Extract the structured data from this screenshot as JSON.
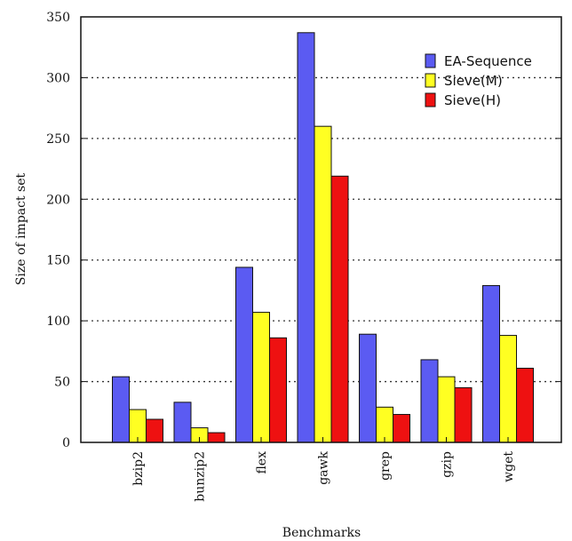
{
  "chart_data": {
    "type": "bar",
    "title": "",
    "xlabel": "Benchmarks",
    "ylabel": "Size of impact set",
    "ylim": [
      0,
      350
    ],
    "yticks": [
      0,
      50,
      100,
      150,
      200,
      250,
      300,
      350
    ],
    "grid": "dotted horizontal",
    "legend_position": "top-right",
    "categories": [
      "bzip2",
      "bunzip2",
      "flex",
      "gawk",
      "grep",
      "gzip",
      "wget"
    ],
    "series": [
      {
        "name": "EA-Sequence",
        "color": "#5b5bf2",
        "values": [
          54,
          33,
          144,
          337,
          89,
          68,
          129
        ]
      },
      {
        "name": "Sieve(M)",
        "color": "#ffff22",
        "values": [
          27,
          12,
          107,
          260,
          29,
          54,
          88
        ]
      },
      {
        "name": "Sieve(H)",
        "color": "#ee1111",
        "values": [
          19,
          8,
          86,
          219,
          23,
          45,
          61
        ]
      }
    ]
  }
}
